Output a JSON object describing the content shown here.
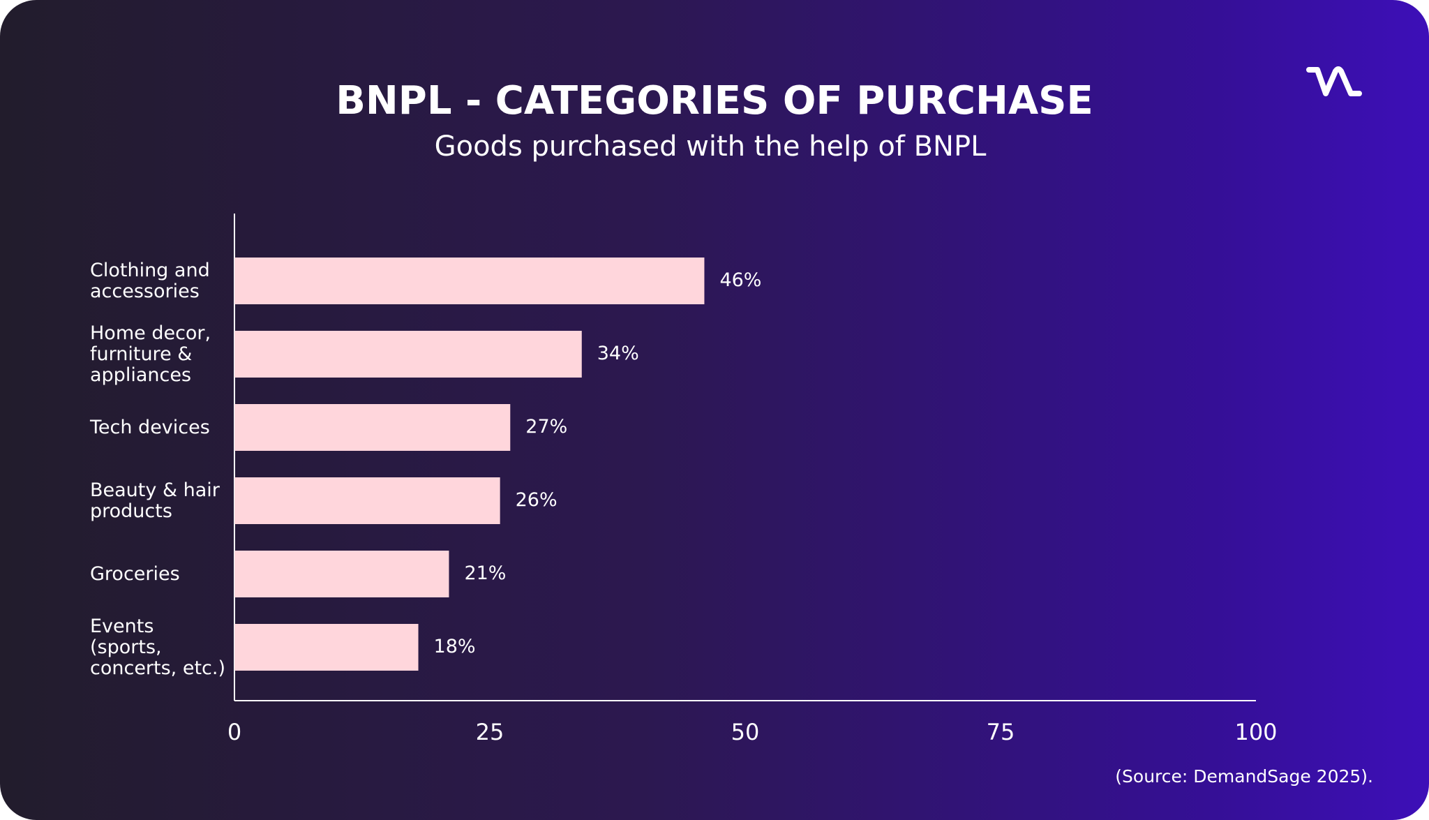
{
  "chart_data": {
    "type": "bar",
    "orientation": "horizontal",
    "title": "BNPL - CATEGORIES OF PURCHASE",
    "subtitle": "Goods purchased with the help of BNPL",
    "categories": [
      "Clothing and\naccessories",
      "Home decor,\nfurniture &\nappliances",
      "Tech devices",
      "Beauty & hair\nproducts",
      "Groceries",
      "Events\n(sports,\nconcerts, etc.)"
    ],
    "values": [
      46,
      34,
      27,
      26,
      21,
      18
    ],
    "value_labels": [
      "46%",
      "34%",
      "27%",
      "26%",
      "21%",
      "18%"
    ],
    "color": "#ffd6dc",
    "xlim": [
      0,
      100
    ],
    "xticks": [
      0,
      25,
      50,
      75,
      100
    ],
    "grid": false,
    "source": "(Source: DemandSage 2025)."
  }
}
